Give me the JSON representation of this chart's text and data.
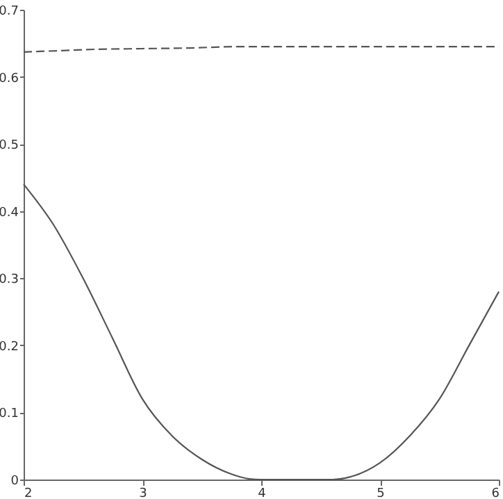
{
  "chart_data": {
    "type": "line",
    "xlim": [
      2,
      6
    ],
    "ylim": [
      0,
      0.7
    ],
    "xticks": [
      2,
      3,
      4,
      5,
      6
    ],
    "yticks": [
      0,
      0.1,
      0.2,
      0.3,
      0.4,
      0.5,
      0.6,
      0.7
    ],
    "grid": false,
    "marker": "none",
    "series": [
      {
        "color": "#555555",
        "line_style": "dashed",
        "x": [
          2,
          2.3,
          2.6,
          3,
          3.4,
          3.8,
          4.5,
          5,
          6
        ],
        "values": [
          0.637,
          0.639,
          0.641,
          0.642,
          0.643,
          0.645,
          0.645,
          0.645,
          0.645
        ]
      },
      {
        "color": "#555555",
        "line_style": "solid",
        "x": [
          2,
          2.25,
          2.5,
          2.75,
          3,
          3.25,
          3.5,
          3.75,
          3.9,
          4,
          4.3,
          4.6,
          4.75,
          5,
          5.25,
          5.5,
          5.75,
          6
        ],
        "values": [
          0.44,
          0.38,
          0.3,
          0.21,
          0.12,
          0.065,
          0.03,
          0.008,
          0.001,
          0,
          0,
          0,
          0.004,
          0.025,
          0.065,
          0.12,
          0.2,
          0.28
        ]
      }
    ]
  }
}
